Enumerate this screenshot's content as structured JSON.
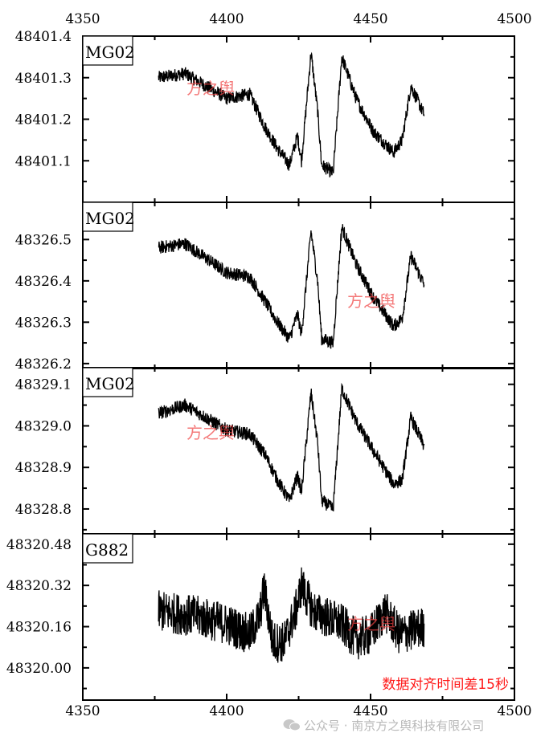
{
  "chart_data": {
    "type": "line",
    "xlim": [
      4350,
      4500
    ],
    "xticks": [
      4350,
      4400,
      4450,
      4500
    ],
    "xtick_labels": [
      "4350",
      "4400",
      "4450",
      "4500"
    ],
    "annotation": "数据对齐时间差15秒",
    "watermark": "方之舆",
    "panels": [
      {
        "label": "MG02",
        "ylim": [
          48401.0,
          48401.4
        ],
        "yticks": [
          48401.1,
          48401.2,
          48401.3,
          48401.4
        ],
        "ytick_labels": [
          "48401.1",
          "48401.2",
          "48401.3",
          "48401.4"
        ],
        "noise": 0.02,
        "trend_x": [
          4376.3,
          4385.5,
          4400,
          4408,
          4413.4,
          4417.6,
          4421.8,
          4424.6,
          4426,
          4429.3,
          4431.6,
          4433,
          4437,
          4440,
          4445,
          4451,
          4458,
          4461,
          4464,
          4468.7
        ],
        "trend_y": [
          48401.3,
          48401.31,
          48401.25,
          48401.26,
          48401.18,
          48401.13,
          48401.09,
          48401.16,
          48401.1,
          48401.36,
          48401.22,
          48401.09,
          48401.07,
          48401.35,
          48401.25,
          48401.17,
          48401.12,
          48401.15,
          48401.28,
          48401.21
        ]
      },
      {
        "label": "MG02",
        "ylim": [
          48326.188,
          48326.59
        ],
        "yticks": [
          48326.2,
          48326.3,
          48326.4,
          48326.5
        ],
        "ytick_labels": [
          "48326.2",
          "48326.3",
          "48326.4",
          "48326.5"
        ],
        "noise": 0.02,
        "trend_x": [
          4376.3,
          4385.5,
          4400,
          4408,
          4413.4,
          4417.6,
          4421.8,
          4424.6,
          4426,
          4429.3,
          4431.6,
          4433,
          4437,
          4440,
          4445,
          4451,
          4458,
          4461,
          4464,
          4468.7
        ],
        "trend_y": [
          48326.48,
          48326.49,
          48326.42,
          48326.41,
          48326.35,
          48326.3,
          48326.26,
          48326.32,
          48326.27,
          48326.52,
          48326.4,
          48326.26,
          48326.25,
          48326.53,
          48326.44,
          48326.36,
          48326.29,
          48326.31,
          48326.46,
          48326.39
        ]
      },
      {
        "label": "MG02",
        "ylim": [
          48328.74,
          48329.14
        ],
        "yticks": [
          48328.8,
          48328.9,
          48329.0,
          48329.1
        ],
        "ytick_labels": [
          "48328.8",
          "48328.9",
          "48329.0",
          "48329.1"
        ],
        "noise": 0.02,
        "trend_x": [
          4376.3,
          4385.5,
          4400,
          4408,
          4413.4,
          4417.6,
          4421.8,
          4424.6,
          4426,
          4429.3,
          4431.6,
          4433,
          4437,
          4440,
          4445,
          4451,
          4458,
          4461,
          4464,
          4468.7
        ],
        "trend_y": [
          48329.03,
          48329.05,
          48328.99,
          48328.98,
          48328.93,
          48328.87,
          48328.82,
          48328.88,
          48328.84,
          48329.08,
          48328.96,
          48328.82,
          48328.8,
          48329.09,
          48329.01,
          48328.94,
          48328.86,
          48328.87,
          48329.02,
          48328.95
        ]
      },
      {
        "label": "G882",
        "ylim": [
          48319.875,
          48320.52
        ],
        "yticks": [
          48320.0,
          48320.16,
          48320.32,
          48320.48
        ],
        "ytick_labels": [
          "48320.00",
          "48320.16",
          "48320.32",
          "48320.48"
        ],
        "noise": 0.09,
        "trend_x": [
          4376.3,
          4390,
          4400,
          4408,
          4411.5,
          4413,
          4416,
          4420,
          4424,
          4426,
          4430,
          4440,
          4445,
          4450,
          4455,
          4460,
          4468.7
        ],
        "trend_y": [
          48320.22,
          48320.2,
          48320.17,
          48320.13,
          48320.2,
          48320.31,
          48320.1,
          48320.1,
          48320.22,
          48320.32,
          48320.22,
          48320.17,
          48320.11,
          48320.13,
          48320.22,
          48320.13,
          48320.16
        ]
      }
    ]
  },
  "footer": {
    "text": "公众号 · 南京方之舆科技有限公司"
  }
}
